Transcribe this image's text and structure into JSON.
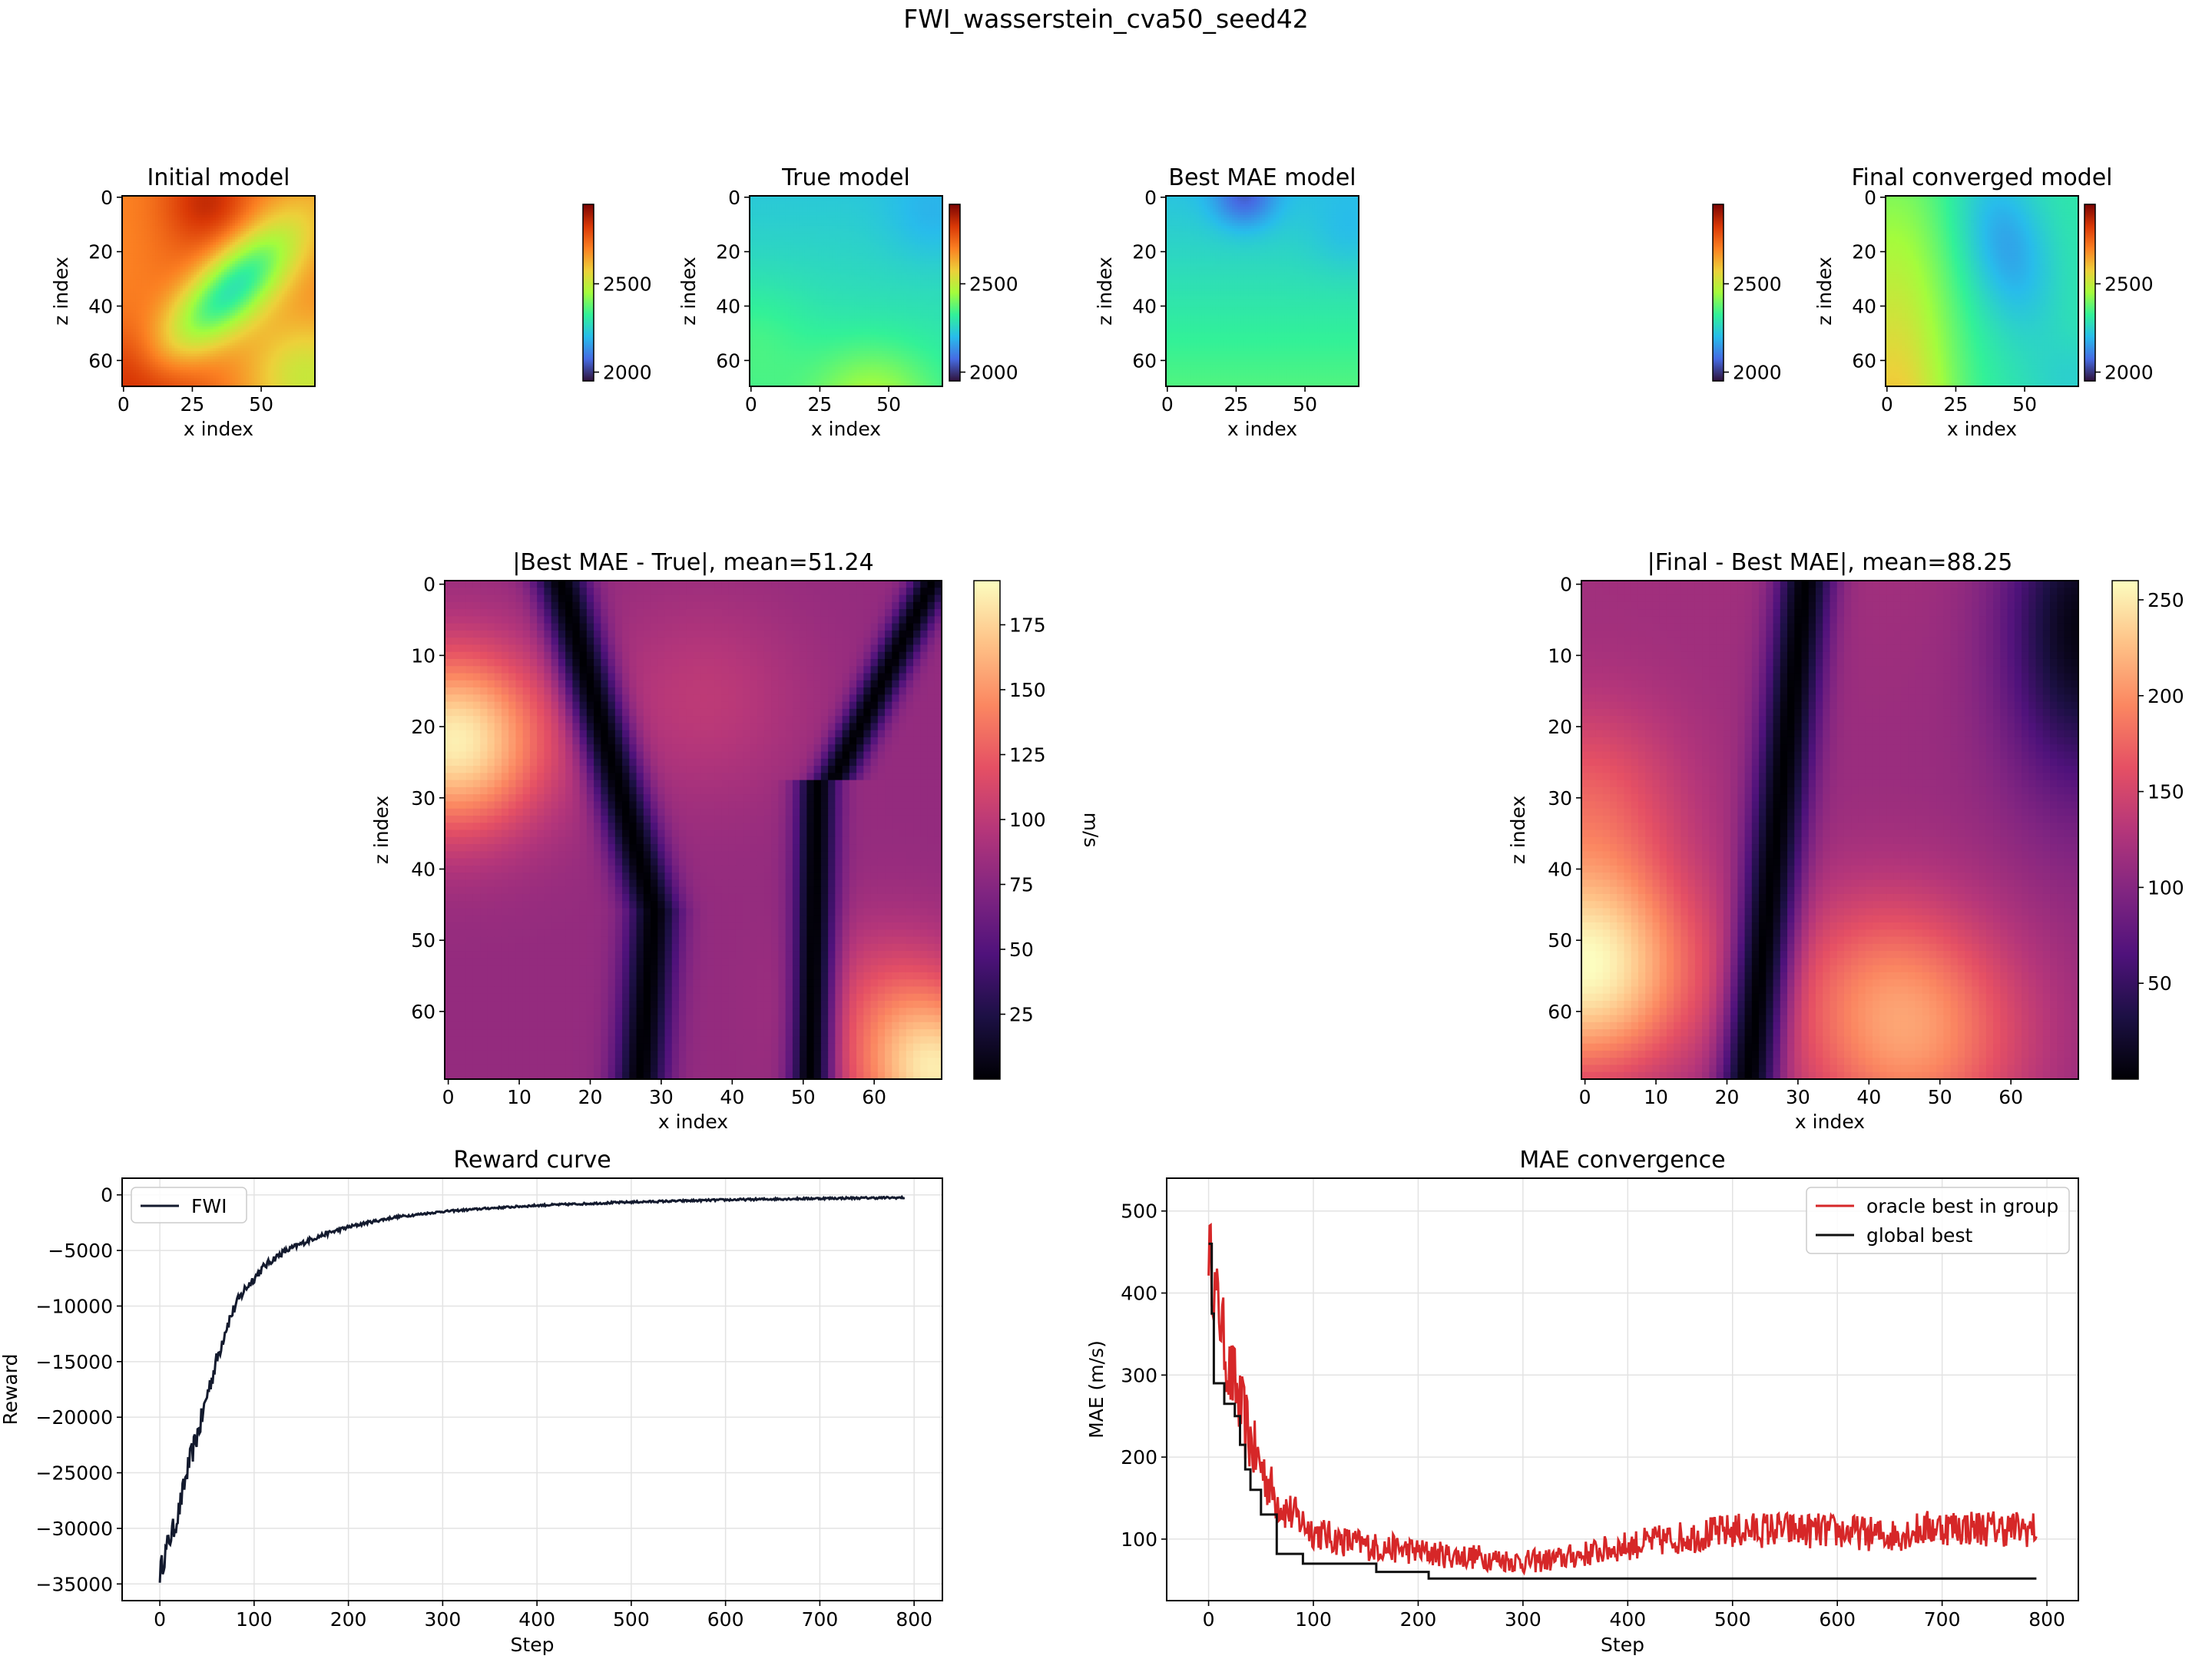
{
  "suptitle": "FWI_wasserstein_cva50_seed42",
  "colors": {
    "fwi_line": "#131a2e",
    "oracle": "#d62728",
    "global": "#111111",
    "grid": "#e3e3e3"
  },
  "colormaps": {
    "velocity": "turbo",
    "difference": "magma"
  },
  "chart_data": [
    {
      "type": "heatmap",
      "title": "Initial model",
      "xlabel": "x index",
      "ylabel": "z index",
      "xticks": [
        "0",
        "25",
        "50"
      ],
      "yticks": [
        "0",
        "20",
        "40",
        "60"
      ],
      "colorbar": {
        "ticks": [
          "2000",
          "2500"
        ],
        "range": [
          1950,
          2950
        ]
      }
    },
    {
      "type": "heatmap",
      "title": "True model",
      "xlabel": "x index",
      "ylabel": "z index",
      "xticks": [
        "0",
        "25",
        "50"
      ],
      "yticks": [
        "0",
        "20",
        "40",
        "60"
      ],
      "colorbar": {
        "ticks": [
          "2000",
          "2500"
        ],
        "range": [
          1950,
          2950
        ]
      }
    },
    {
      "type": "heatmap",
      "title": "Best MAE model",
      "xlabel": "x index",
      "ylabel": "z index",
      "xticks": [
        "0",
        "25",
        "50"
      ],
      "yticks": [
        "0",
        "20",
        "40",
        "60"
      ],
      "colorbar": {
        "ticks": [
          "2000",
          "2500"
        ],
        "range": [
          1950,
          2950
        ]
      }
    },
    {
      "type": "heatmap",
      "title": "Final converged model",
      "xlabel": "x index",
      "ylabel": "z index",
      "xticks": [
        "0",
        "25",
        "50"
      ],
      "yticks": [
        "0",
        "20",
        "40",
        "60"
      ],
      "colorbar": {
        "ticks": [
          "2000",
          "2500"
        ],
        "range": [
          1950,
          2950
        ]
      }
    },
    {
      "type": "heatmap",
      "title": "|Best MAE - True|, mean=51.24",
      "xlabel": "x index",
      "ylabel": "z index",
      "xticks": [
        "0",
        "10",
        "20",
        "30",
        "40",
        "50",
        "60"
      ],
      "yticks": [
        "0",
        "10",
        "20",
        "30",
        "40",
        "50",
        "60"
      ],
      "colorbar": {
        "label": "m/s",
        "ticks": [
          "25",
          "50",
          "75",
          "100",
          "125",
          "150",
          "175"
        ],
        "range": [
          0,
          192
        ]
      }
    },
    {
      "type": "heatmap",
      "title": "|Final - Best MAE|, mean=88.25",
      "xlabel": "x index",
      "ylabel": "z index",
      "xticks": [
        "0",
        "10",
        "20",
        "30",
        "40",
        "50",
        "60"
      ],
      "yticks": [
        "0",
        "10",
        "20",
        "30",
        "40",
        "50",
        "60"
      ],
      "colorbar": {
        "label": "m/s",
        "ticks": [
          "50",
          "100",
          "150",
          "200",
          "250"
        ],
        "range": [
          0,
          260
        ]
      }
    },
    {
      "type": "line",
      "title": "Reward curve",
      "xlabel": "Step",
      "ylabel": "Reward",
      "xlim": [
        -40,
        830
      ],
      "ylim": [
        -36500,
        1500
      ],
      "xticks": [
        0,
        100,
        200,
        300,
        400,
        500,
        600,
        700,
        800
      ],
      "yticks": [
        0,
        -5000,
        -10000,
        -15000,
        -20000,
        -25000,
        -30000,
        -35000
      ],
      "ytick_labels": [
        "0",
        "−5000",
        "−10000",
        "−15000",
        "−20000",
        "−25000",
        "−30000",
        "−35000"
      ],
      "grid": true,
      "legend": "top-left",
      "series": [
        {
          "name": "FWI",
          "x": [
            0,
            5,
            10,
            15,
            20,
            25,
            30,
            35,
            40,
            45,
            50,
            55,
            60,
            65,
            70,
            75,
            80,
            90,
            100,
            110,
            120,
            130,
            140,
            150,
            160,
            180,
            200,
            220,
            250,
            280,
            300,
            350,
            400,
            450,
            500,
            550,
            600,
            650,
            700,
            750,
            790
          ],
          "y": [
            -34000,
            -32500,
            -31000,
            -30000,
            -28500,
            -26500,
            -24500,
            -23000,
            -21500,
            -20000,
            -18000,
            -16500,
            -15000,
            -13500,
            -12000,
            -11000,
            -10000,
            -8500,
            -7500,
            -6500,
            -5800,
            -5200,
            -4800,
            -4400,
            -4000,
            -3400,
            -2900,
            -2500,
            -2000,
            -1700,
            -1500,
            -1200,
            -950,
            -800,
            -650,
            -550,
            -450,
            -380,
            -320,
            -280,
            -250
          ],
          "noise": 1100
        }
      ]
    },
    {
      "type": "line",
      "title": "MAE convergence",
      "xlabel": "Step",
      "ylabel": "MAE (m/s)",
      "xlim": [
        -40,
        830
      ],
      "ylim": [
        25,
        540
      ],
      "xticks": [
        0,
        100,
        200,
        300,
        400,
        500,
        600,
        700,
        800
      ],
      "yticks": [
        100,
        200,
        300,
        400,
        500
      ],
      "grid": true,
      "legend": "top-right",
      "series": [
        {
          "name": "oracle best in group",
          "color_key": "oracle",
          "x": [
            0,
            3,
            6,
            10,
            15,
            20,
            25,
            30,
            35,
            40,
            45,
            50,
            60,
            70,
            80,
            90,
            100,
            120,
            140,
            160,
            180,
            200,
            230,
            260,
            300,
            330,
            360,
            400,
            430,
            470,
            500,
            540,
            580,
            620,
            650,
            680,
            700,
            730,
            760,
            790
          ],
          "y": [
            460,
            430,
            400,
            380,
            340,
            300,
            290,
            260,
            240,
            220,
            200,
            190,
            160,
            140,
            130,
            120,
            110,
            100,
            95,
            90,
            88,
            85,
            80,
            78,
            72,
            75,
            82,
            92,
            98,
            105,
            110,
            112,
            110,
            108,
            104,
            112,
            115,
            114,
            113,
            112
          ],
          "noise": 30
        },
        {
          "name": "global best",
          "color_key": "global",
          "step": true,
          "x": [
            0,
            3,
            5,
            10,
            15,
            20,
            25,
            30,
            35,
            40,
            50,
            65,
            75,
            80,
            90,
            100,
            160,
            210,
            300,
            400,
            500,
            600,
            700,
            790
          ],
          "y": [
            460,
            375,
            290,
            290,
            265,
            265,
            250,
            215,
            185,
            160,
            130,
            82,
            82,
            82,
            70,
            70,
            60,
            52,
            52,
            52,
            52,
            52,
            52,
            52
          ]
        }
      ]
    }
  ]
}
